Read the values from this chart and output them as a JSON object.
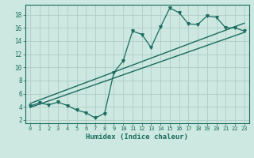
{
  "title": "",
  "xlabel": "Humidex (Indice chaleur)",
  "ylabel": "",
  "bg_color": "#cce8e0",
  "grid_color": "#b0ccc8",
  "line_color": "#1a6b60",
  "outer_bg": "#cce8e0",
  "xlim": [
    -0.5,
    23.5
  ],
  "ylim": [
    1.5,
    19.5
  ],
  "xticks": [
    0,
    1,
    2,
    3,
    4,
    5,
    6,
    7,
    8,
    9,
    10,
    11,
    12,
    13,
    14,
    15,
    16,
    17,
    18,
    19,
    20,
    21,
    22,
    23
  ],
  "yticks": [
    2,
    4,
    6,
    8,
    10,
    12,
    14,
    16,
    18
  ],
  "data_line": {
    "x": [
      0,
      1,
      2,
      3,
      4,
      5,
      6,
      7,
      8,
      9,
      10,
      11,
      12,
      13,
      14,
      15,
      16,
      17,
      18,
      19,
      20,
      21,
      22,
      23
    ],
    "y": [
      4.1,
      4.6,
      4.3,
      4.7,
      4.2,
      3.5,
      3.1,
      2.3,
      3.0,
      9.2,
      11.0,
      15.5,
      15.0,
      13.0,
      16.1,
      19.0,
      18.3,
      16.6,
      16.5,
      17.8,
      17.6,
      16.0,
      16.0,
      15.5
    ]
  },
  "reg_line1": {
    "x": [
      0,
      23
    ],
    "y": [
      3.9,
      15.3
    ]
  },
  "reg_line2": {
    "x": [
      0,
      23
    ],
    "y": [
      4.5,
      16.7
    ]
  }
}
